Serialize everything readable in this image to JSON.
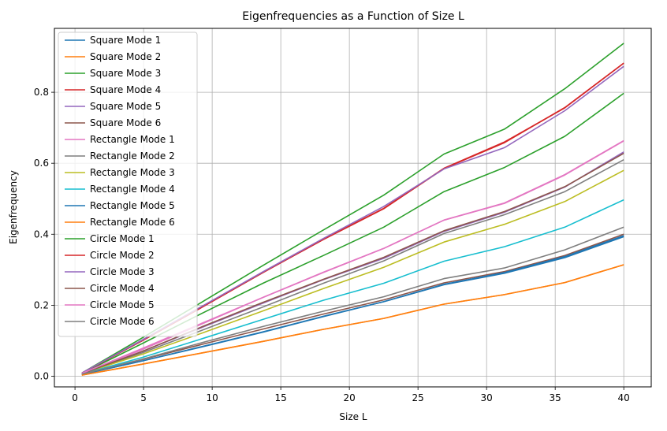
{
  "chart_data": {
    "type": "line",
    "title": "Eigenfrequencies as a Function of Size L",
    "xlabel": "Size L",
    "ylabel": "Eigenfrequency",
    "xlim": [
      -1.5,
      42.0
    ],
    "ylim": [
      -0.03,
      0.98
    ],
    "xticks": [
      0,
      5,
      10,
      15,
      20,
      25,
      30,
      35,
      40
    ],
    "yticks": [
      0.0,
      0.2,
      0.4,
      0.6,
      0.8
    ],
    "xtick_labels": [
      "0",
      "5",
      "10",
      "15",
      "20",
      "25",
      "30",
      "35",
      "40"
    ],
    "ytick_labels": [
      "0.0",
      "0.2",
      "0.4",
      "0.6",
      "0.8"
    ],
    "grid": true,
    "legend_position": "top-left",
    "x": [
      0.5,
      4.9,
      9.3,
      13.7,
      18.1,
      22.5,
      26.9,
      31.3,
      35.7,
      40.0
    ],
    "series": [
      {
        "name": "Square Mode 1",
        "color": "#1f77b4",
        "values": [
          0.005,
          0.043,
          0.083,
          0.124,
          0.168,
          0.21,
          0.258,
          0.29,
          0.334,
          0.393
        ]
      },
      {
        "name": "Square Mode 2",
        "color": "#ff7f0e",
        "values": [
          0.003,
          0.034,
          0.066,
          0.098,
          0.132,
          0.163,
          0.203,
          0.23,
          0.264,
          0.314
        ]
      },
      {
        "name": "Square Mode 3",
        "color": "#2ca02c",
        "values": [
          0.008,
          0.092,
          0.178,
          0.262,
          0.34,
          0.42,
          0.52,
          0.588,
          0.676,
          0.797
        ]
      },
      {
        "name": "Square Mode 4",
        "color": "#d62728",
        "values": [
          0.009,
          0.1,
          0.195,
          0.292,
          0.385,
          0.472,
          0.585,
          0.658,
          0.757,
          0.882
        ]
      },
      {
        "name": "Square Mode 5",
        "color": "#9467bd",
        "values": [
          0.008,
          0.07,
          0.138,
          0.206,
          0.272,
          0.332,
          0.408,
          0.462,
          0.533,
          0.632
        ]
      },
      {
        "name": "Square Mode 6",
        "color": "#8c564b",
        "values": [
          0.006,
          0.047,
          0.09,
          0.133,
          0.175,
          0.215,
          0.263,
          0.295,
          0.34,
          0.4
        ]
      },
      {
        "name": "Rectangle Mode 1",
        "color": "#e377c2",
        "values": [
          0.008,
          0.075,
          0.148,
          0.222,
          0.292,
          0.36,
          0.44,
          0.488,
          0.568,
          0.664
        ]
      },
      {
        "name": "Rectangle Mode 2",
        "color": "#7f7f7f",
        "values": [
          0.007,
          0.066,
          0.13,
          0.195,
          0.262,
          0.325,
          0.402,
          0.455,
          0.52,
          0.61
        ]
      },
      {
        "name": "Rectangle Mode 3",
        "color": "#bcbd22",
        "values": [
          0.007,
          0.062,
          0.122,
          0.184,
          0.247,
          0.307,
          0.378,
          0.428,
          0.492,
          0.58
        ]
      },
      {
        "name": "Rectangle Mode 4",
        "color": "#17becf",
        "values": [
          0.006,
          0.053,
          0.106,
          0.16,
          0.214,
          0.262,
          0.324,
          0.365,
          0.42,
          0.497
        ]
      },
      {
        "name": "Rectangle Mode 5",
        "color": "#1f77b4",
        "values": [
          0.005,
          0.043,
          0.084,
          0.125,
          0.169,
          0.21,
          0.259,
          0.292,
          0.337,
          0.396
        ]
      },
      {
        "name": "Rectangle Mode 6",
        "color": "#ff7f0e",
        "values": [
          0.003,
          0.034,
          0.066,
          0.098,
          0.132,
          0.163,
          0.203,
          0.23,
          0.264,
          0.314
        ]
      },
      {
        "name": "Circle Mode 1",
        "color": "#2ca02c",
        "values": [
          0.009,
          0.108,
          0.21,
          0.312,
          0.412,
          0.51,
          0.626,
          0.696,
          0.81,
          0.938
        ]
      },
      {
        "name": "Circle Mode 2",
        "color": "#d62728",
        "values": [
          0.009,
          0.1,
          0.196,
          0.292,
          0.386,
          0.473,
          0.586,
          0.66,
          0.756,
          0.882
        ]
      },
      {
        "name": "Circle Mode 3",
        "color": "#9467bd",
        "values": [
          0.009,
          0.102,
          0.198,
          0.294,
          0.388,
          0.478,
          0.584,
          0.644,
          0.748,
          0.873
        ]
      },
      {
        "name": "Circle Mode 4",
        "color": "#8c564b",
        "values": [
          0.007,
          0.07,
          0.14,
          0.208,
          0.273,
          0.335,
          0.41,
          0.464,
          0.534,
          0.628
        ]
      },
      {
        "name": "Circle Mode 5",
        "color": "#e377c2",
        "values": [
          0.008,
          0.078,
          0.15,
          0.222,
          0.293,
          0.36,
          0.44,
          0.487,
          0.567,
          0.663
        ]
      },
      {
        "name": "Circle Mode 6",
        "color": "#7f7f7f",
        "values": [
          0.006,
          0.048,
          0.095,
          0.14,
          0.183,
          0.224,
          0.275,
          0.305,
          0.356,
          0.42
        ]
      }
    ]
  }
}
